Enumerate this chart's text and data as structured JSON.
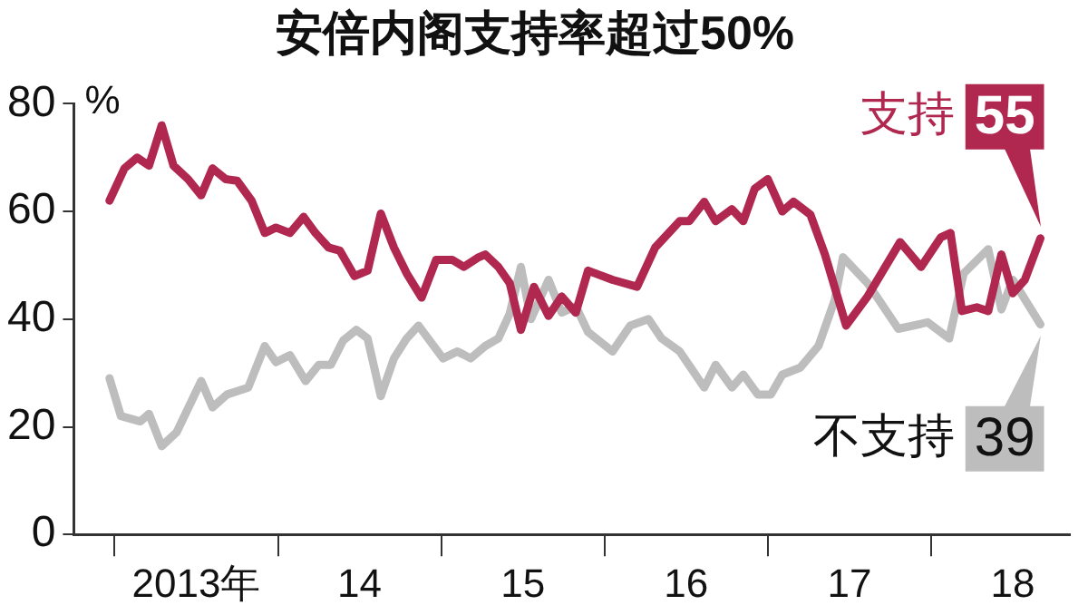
{
  "chart_data": {
    "type": "line",
    "title": "安倍内阁支持率超过50%",
    "ylabel": "%",
    "xlim": [
      "2012-10-01",
      "2018-11-07"
    ],
    "xticks": [
      {
        "value": "2013-01-01",
        "label": null
      },
      {
        "value": "2013-07-01",
        "label": "2013年"
      },
      {
        "value": "2014-01-01",
        "label": null
      },
      {
        "value": "2014-07-01",
        "label": "14"
      },
      {
        "value": "2015-01-01",
        "label": null
      },
      {
        "value": "2015-07-01",
        "label": "15"
      },
      {
        "value": "2016-01-01",
        "label": null
      },
      {
        "value": "2016-07-01",
        "label": "16"
      },
      {
        "value": "2017-01-01",
        "label": null
      },
      {
        "value": "2017-07-01",
        "label": "17"
      },
      {
        "value": "2018-01-01",
        "label": null
      },
      {
        "value": "2018-07-01",
        "label": "18"
      }
    ],
    "ylim": [
      0,
      80
    ],
    "yticks": [
      0,
      20,
      40,
      60,
      80
    ],
    "grid": false,
    "legend": "right",
    "marker": "none",
    "line_style": "solid",
    "series": [
      {
        "name": "支持",
        "color": "#b0284f",
        "x": [
          "2012-12-20",
          "2013-01-23",
          "2013-02-21",
          "2013-03-17",
          "2013-04-15",
          "2013-05-11",
          "2013-06-13",
          "2013-07-12",
          "2013-08-07",
          "2013-09-06",
          "2013-10-01",
          "2013-11-03",
          "2013-12-02",
          "2013-12-27",
          "2014-01-28",
          "2014-02-28",
          "2014-03-24",
          "2014-04-23",
          "2014-05-18",
          "2014-06-20",
          "2014-07-19",
          "2014-08-18",
          "2014-09-17",
          "2014-10-15",
          "2014-11-18",
          "2014-12-20",
          "2015-01-26",
          "2015-02-21",
          "2015-03-24",
          "2015-04-08",
          "2015-05-07",
          "2015-06-02",
          "2015-06-27",
          "2015-07-26",
          "2015-08-28",
          "2015-09-27",
          "2015-10-28",
          "2015-11-25",
          "2016-01-19",
          "2016-03-13",
          "2016-04-23",
          "2016-06-17",
          "2016-07-08",
          "2016-08-11",
          "2016-09-06",
          "2016-10-12",
          "2016-11-07",
          "2016-12-02",
          "2017-01-01",
          "2017-02-03",
          "2017-02-28",
          "2017-04-05",
          "2017-05-07",
          "2017-06-24",
          "2017-08-11",
          "2017-10-23",
          "2017-12-09",
          "2018-01-23",
          "2018-02-14",
          "2018-03-09",
          "2018-04-12",
          "2018-05-07",
          "2018-06-06",
          "2018-07-01",
          "2018-07-28",
          "2018-09-02"
        ],
        "values": [
          62,
          68,
          70,
          68.5,
          76,
          68.5,
          66,
          63,
          68,
          66,
          65.7,
          62,
          56,
          57,
          56,
          59,
          56,
          53.3,
          52.7,
          48,
          49,
          59.6,
          53.3,
          48.5,
          44,
          51,
          51,
          49.7,
          51.5,
          52,
          49.7,
          46.7,
          38,
          46,
          40.6,
          44.2,
          41.2,
          49,
          47.3,
          46,
          53.3,
          58.2,
          58.2,
          61.8,
          58.2,
          60.4,
          58.2,
          64.2,
          66,
          60,
          61.8,
          59.4,
          52,
          38.8,
          44.2,
          54.3,
          49.7,
          55.2,
          56,
          41.5,
          42.2,
          41.5,
          52,
          44.8,
          47.3,
          55
        ],
        "value_labels": [
          null,
          null,
          null,
          null,
          null,
          null,
          null,
          null,
          null,
          null,
          null,
          null,
          null,
          null,
          null,
          null,
          null,
          null,
          null,
          null,
          null,
          null,
          null,
          null,
          null,
          null,
          null,
          null,
          null,
          null,
          null,
          null,
          null,
          null,
          null,
          null,
          null,
          null,
          null,
          null,
          null,
          null,
          null,
          null,
          null,
          null,
          null,
          null,
          null,
          null,
          null,
          null,
          null,
          null,
          null,
          null,
          null,
          null,
          null,
          null,
          null,
          null,
          null,
          null,
          null,
          "55"
        ]
      },
      {
        "name": "不支持",
        "color": "#bdbdbd",
        "x": [
          "2012-12-20",
          "2013-01-15",
          "2013-02-28",
          "2013-03-17",
          "2013-04-15",
          "2013-05-18",
          "2013-07-12",
          "2013-08-07",
          "2013-09-09",
          "2013-10-26",
          "2013-12-02",
          "2013-12-27",
          "2014-01-28",
          "2014-03-02",
          "2014-04-01",
          "2014-04-28",
          "2014-05-25",
          "2014-06-24",
          "2014-07-19",
          "2014-08-18",
          "2014-09-17",
          "2014-10-15",
          "2014-11-11",
          "2015-01-05",
          "2015-02-07",
          "2015-03-06",
          "2015-04-08",
          "2015-05-07",
          "2015-06-02",
          "2015-06-27",
          "2015-07-19",
          "2015-08-28",
          "2015-09-27",
          "2015-10-28",
          "2015-11-25",
          "2016-01-19",
          "2016-02-28",
          "2016-04-08",
          "2016-05-07",
          "2016-06-17",
          "2016-08-11",
          "2016-09-06",
          "2016-10-12",
          "2016-11-07",
          "2016-12-09",
          "2017-01-08",
          "2017-02-03",
          "2017-03-13",
          "2017-04-23",
          "2017-05-29",
          "2017-06-17",
          "2017-08-11",
          "2017-10-19",
          "2017-12-24",
          "2018-02-11",
          "2018-03-13",
          "2018-05-07",
          "2018-06-06",
          "2018-07-01",
          "2018-09-02"
        ],
        "values": [
          29,
          22,
          21,
          22.4,
          16.4,
          19,
          28.5,
          23.6,
          26,
          27.3,
          35,
          32,
          33.3,
          28.5,
          31.5,
          31.5,
          36,
          38,
          36.4,
          25.7,
          32.7,
          36.4,
          38.8,
          32.7,
          34,
          32.7,
          35,
          36.4,
          41,
          49.7,
          40,
          47.3,
          41.2,
          42.4,
          37.6,
          34,
          38.8,
          40,
          36.4,
          34,
          27.3,
          31.5,
          27.3,
          29.7,
          26,
          26,
          29.7,
          31,
          35,
          43.6,
          51.5,
          46.7,
          38.2,
          39.4,
          36.4,
          48.5,
          53,
          41.8,
          47.3,
          39
        ],
        "value_labels": [
          null,
          null,
          null,
          null,
          null,
          null,
          null,
          null,
          null,
          null,
          null,
          null,
          null,
          null,
          null,
          null,
          null,
          null,
          null,
          null,
          null,
          null,
          null,
          null,
          null,
          null,
          null,
          null,
          null,
          null,
          null,
          null,
          null,
          null,
          null,
          null,
          null,
          null,
          null,
          null,
          null,
          null,
          null,
          null,
          null,
          null,
          null,
          null,
          null,
          null,
          null,
          null,
          null,
          null,
          null,
          null,
          null,
          null,
          null,
          "39"
        ]
      }
    ]
  }
}
